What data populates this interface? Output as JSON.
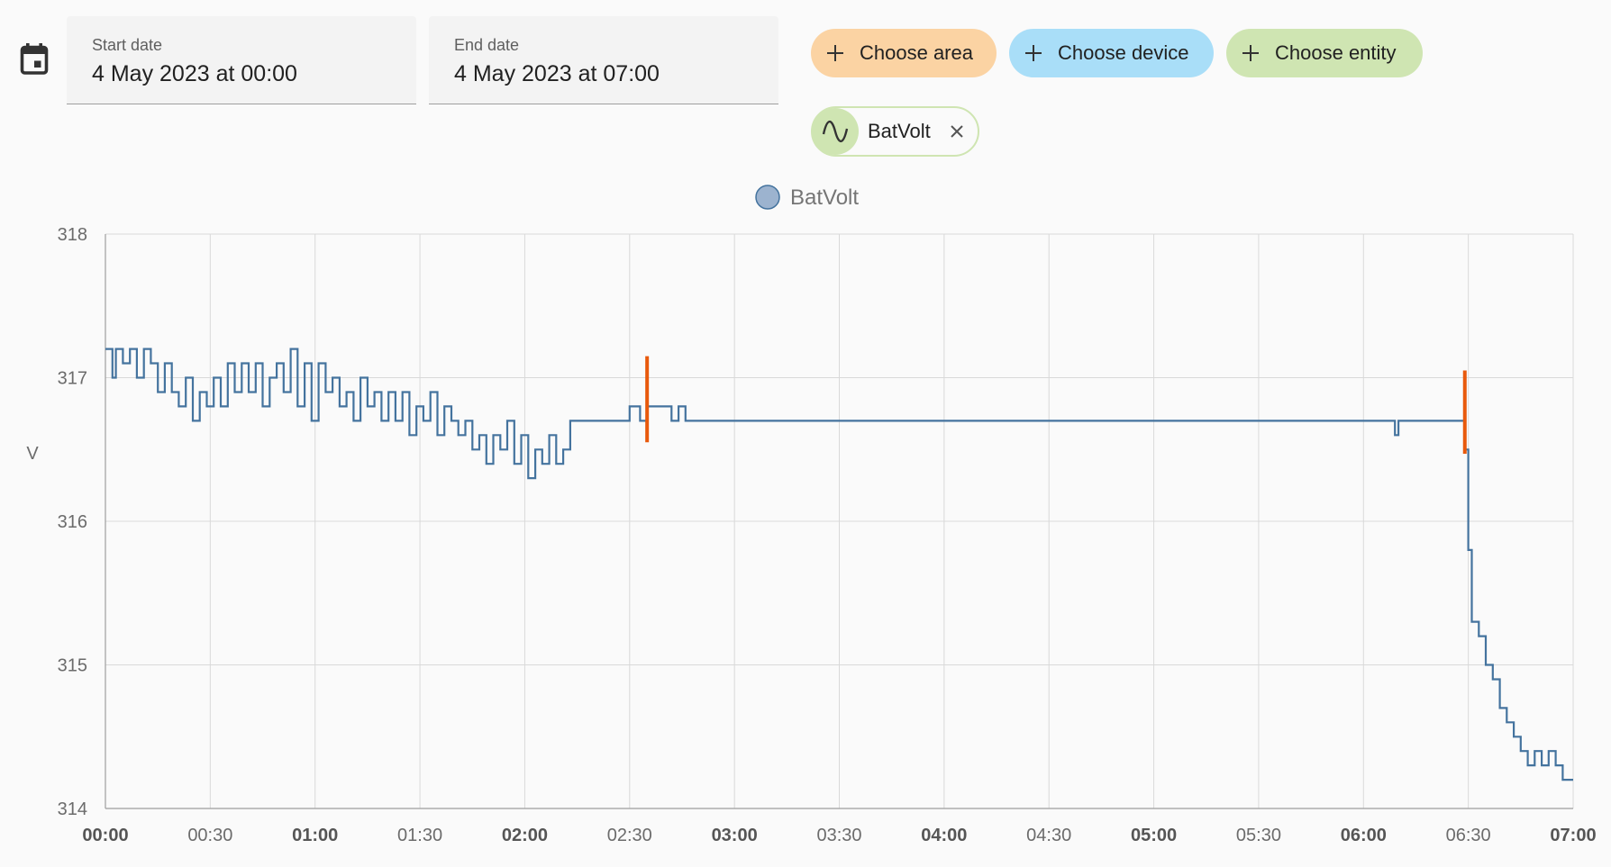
{
  "picker": {
    "start_label": "Start date",
    "start_value": "4 May 2023 at 00:00",
    "end_label": "End date",
    "end_value": "4 May 2023 at 07:00"
  },
  "targets": {
    "area_label": "Choose area",
    "device_label": "Choose device",
    "entity_label": "Choose entity",
    "colors": {
      "area": "#fbd3a3",
      "device": "#a9def8",
      "entity": "#cfe5b2"
    }
  },
  "selected_entity": {
    "name": "BatVolt",
    "icon": "sine-wave-icon"
  },
  "chart_data": {
    "type": "line",
    "legend": [
      "BatVolt"
    ],
    "legend_position": "top-center",
    "ylabel": "V",
    "ylim": [
      314,
      318
    ],
    "yticks": [
      "318",
      "317",
      "316",
      "315",
      "314"
    ],
    "xlim_hours": [
      0,
      7
    ],
    "xticks": [
      {
        "label": "00:00",
        "bold": true
      },
      {
        "label": "00:30",
        "bold": false
      },
      {
        "label": "01:00",
        "bold": true
      },
      {
        "label": "01:30",
        "bold": false
      },
      {
        "label": "02:00",
        "bold": true
      },
      {
        "label": "02:30",
        "bold": false
      },
      {
        "label": "03:00",
        "bold": true
      },
      {
        "label": "03:30",
        "bold": false
      },
      {
        "label": "04:00",
        "bold": true
      },
      {
        "label": "04:30",
        "bold": false
      },
      {
        "label": "05:00",
        "bold": true
      },
      {
        "label": "05:30",
        "bold": false
      },
      {
        "label": "06:00",
        "bold": true
      },
      {
        "label": "06:30",
        "bold": false
      },
      {
        "label": "07:00",
        "bold": true
      }
    ],
    "grid": true,
    "series": [
      {
        "name": "BatVolt",
        "color": "#44739e",
        "step": true,
        "points": [
          [
            "00:00",
            317.2
          ],
          [
            "00:02",
            317.0
          ],
          [
            "00:03",
            317.2
          ],
          [
            "00:05",
            317.1
          ],
          [
            "00:07",
            317.2
          ],
          [
            "00:09",
            317.0
          ],
          [
            "00:11",
            317.2
          ],
          [
            "00:13",
            317.1
          ],
          [
            "00:15",
            316.9
          ],
          [
            "00:17",
            317.1
          ],
          [
            "00:19",
            316.9
          ],
          [
            "00:21",
            316.8
          ],
          [
            "00:23",
            317.0
          ],
          [
            "00:25",
            316.7
          ],
          [
            "00:27",
            316.9
          ],
          [
            "00:29",
            316.8
          ],
          [
            "00:31",
            317.0
          ],
          [
            "00:33",
            316.8
          ],
          [
            "00:35",
            317.1
          ],
          [
            "00:37",
            316.9
          ],
          [
            "00:39",
            317.1
          ],
          [
            "00:41",
            316.9
          ],
          [
            "00:43",
            317.1
          ],
          [
            "00:45",
            316.8
          ],
          [
            "00:47",
            317.0
          ],
          [
            "00:49",
            317.1
          ],
          [
            "00:51",
            316.9
          ],
          [
            "00:53",
            317.2
          ],
          [
            "00:55",
            316.8
          ],
          [
            "00:57",
            317.1
          ],
          [
            "00:59",
            316.7
          ],
          [
            "01:01",
            317.1
          ],
          [
            "01:03",
            316.9
          ],
          [
            "01:05",
            317.0
          ],
          [
            "01:07",
            316.8
          ],
          [
            "01:09",
            316.9
          ],
          [
            "01:11",
            316.7
          ],
          [
            "01:13",
            317.0
          ],
          [
            "01:15",
            316.8
          ],
          [
            "01:17",
            316.9
          ],
          [
            "01:19",
            316.7
          ],
          [
            "01:21",
            316.9
          ],
          [
            "01:23",
            316.7
          ],
          [
            "01:25",
            316.9
          ],
          [
            "01:27",
            316.6
          ],
          [
            "01:29",
            316.8
          ],
          [
            "01:31",
            316.7
          ],
          [
            "01:33",
            316.9
          ],
          [
            "01:35",
            316.6
          ],
          [
            "01:37",
            316.8
          ],
          [
            "01:39",
            316.7
          ],
          [
            "01:41",
            316.6
          ],
          [
            "01:43",
            316.7
          ],
          [
            "01:45",
            316.5
          ],
          [
            "01:47",
            316.6
          ],
          [
            "01:49",
            316.4
          ],
          [
            "01:51",
            316.6
          ],
          [
            "01:53",
            316.5
          ],
          [
            "01:55",
            316.7
          ],
          [
            "01:57",
            316.4
          ],
          [
            "01:59",
            316.6
          ],
          [
            "02:01",
            316.3
          ],
          [
            "02:03",
            316.5
          ],
          [
            "02:05",
            316.4
          ],
          [
            "02:07",
            316.6
          ],
          [
            "02:09",
            316.4
          ],
          [
            "02:11",
            316.5
          ],
          [
            "02:13",
            316.7
          ],
          [
            "02:30",
            316.8
          ],
          [
            "02:33",
            316.7
          ],
          [
            "02:35",
            316.8
          ],
          [
            "02:42",
            316.7
          ],
          [
            "02:44",
            316.8
          ],
          [
            "02:46",
            316.7
          ],
          [
            "06:09",
            316.6
          ],
          [
            "06:10",
            316.7
          ],
          [
            "06:29",
            316.5
          ],
          [
            "06:30",
            315.8
          ],
          [
            "06:31",
            315.3
          ],
          [
            "06:33",
            315.2
          ],
          [
            "06:35",
            315.0
          ],
          [
            "06:37",
            314.9
          ],
          [
            "06:39",
            314.7
          ],
          [
            "06:41",
            314.6
          ],
          [
            "06:43",
            314.5
          ],
          [
            "06:45",
            314.4
          ],
          [
            "06:47",
            314.3
          ],
          [
            "06:49",
            314.4
          ],
          [
            "06:51",
            314.3
          ],
          [
            "06:53",
            314.4
          ],
          [
            "06:55",
            314.3
          ],
          [
            "06:57",
            314.2
          ],
          [
            "07:00",
            314.2
          ]
        ]
      }
    ],
    "annotations": [
      {
        "time": "02:35",
        "ymin": 316.55,
        "ymax": 317.15,
        "color": "#e8590c"
      },
      {
        "time": "06:29",
        "ymin": 316.47,
        "ymax": 317.05,
        "color": "#e8590c"
      }
    ]
  }
}
